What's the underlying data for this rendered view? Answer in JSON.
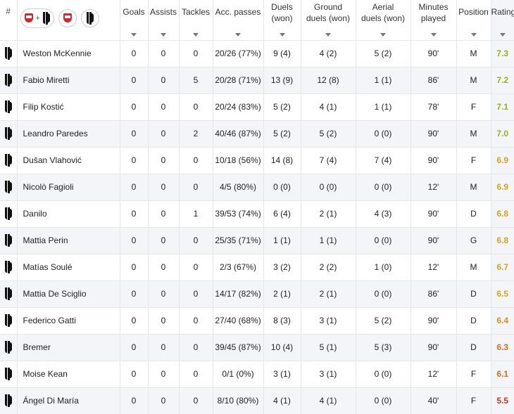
{
  "header": {
    "index_label": "#",
    "columns": [
      {
        "key": "goals",
        "label_lines": [
          "Goals"
        ]
      },
      {
        "key": "assists",
        "label_lines": [
          "Assists"
        ]
      },
      {
        "key": "tackles",
        "label_lines": [
          "Tackles"
        ]
      },
      {
        "key": "acc_passes",
        "label_lines": [
          "Acc. passes"
        ]
      },
      {
        "key": "duels",
        "label_lines": [
          "Duels",
          "(won)"
        ]
      },
      {
        "key": "ground",
        "label_lines": [
          "Ground",
          "duels (won)"
        ]
      },
      {
        "key": "aerial",
        "label_lines": [
          "Aerial",
          "duels (won)"
        ]
      },
      {
        "key": "minutes",
        "label_lines": [
          "Minutes",
          "played"
        ]
      },
      {
        "key": "position",
        "label_lines": [
          "Position"
        ]
      },
      {
        "key": "rating",
        "label_lines": [
          "Rating"
        ]
      }
    ],
    "team_filter": {
      "combined_icons": [
        "monza-crest-icon",
        "juventus-crest-icon"
      ],
      "combined_separator": "+",
      "home_icon": "monza-crest-icon",
      "away_icon": "juventus-crest-icon"
    }
  },
  "colors": {
    "rating_green": "#9aaf1c",
    "rating_yellow": "#d4a41d",
    "rating_orange": "#e48a1a",
    "rating_dark_orange": "#dd6a16",
    "rating_red": "#d1361b",
    "row_shade": "#f4f5f9"
  },
  "players": [
    {
      "name": "Weston McKennie",
      "goals": "0",
      "assists": "0",
      "tackles": "0",
      "acc_passes": "20/26 (77%)",
      "duels": "9 (4)",
      "ground": "4 (2)",
      "aerial": "5 (2)",
      "minutes": "90'",
      "position": "M",
      "rating": "7.3",
      "rating_color": "green"
    },
    {
      "name": "Fabio Miretti",
      "goals": "0",
      "assists": "0",
      "tackles": "5",
      "acc_passes": "20/28 (71%)",
      "duels": "13 (9)",
      "ground": "12 (8)",
      "aerial": "1 (1)",
      "minutes": "86'",
      "position": "M",
      "rating": "7.2",
      "rating_color": "green"
    },
    {
      "name": "Filip Kostić",
      "goals": "0",
      "assists": "0",
      "tackles": "0",
      "acc_passes": "20/24 (83%)",
      "duels": "5 (2)",
      "ground": "4 (1)",
      "aerial": "1 (1)",
      "minutes": "78'",
      "position": "F",
      "rating": "7.1",
      "rating_color": "green"
    },
    {
      "name": "Leandro Paredes",
      "goals": "0",
      "assists": "0",
      "tackles": "2",
      "acc_passes": "40/46 (87%)",
      "duels": "5 (2)",
      "ground": "5 (2)",
      "aerial": "0 (0)",
      "minutes": "90'",
      "position": "M",
      "rating": "7.0",
      "rating_color": "green"
    },
    {
      "name": "Dušan Vlahović",
      "goals": "0",
      "assists": "0",
      "tackles": "0",
      "acc_passes": "10/18 (56%)",
      "duels": "14 (8)",
      "ground": "7 (4)",
      "aerial": "7 (4)",
      "minutes": "90'",
      "position": "F",
      "rating": "6.9",
      "rating_color": "yellow"
    },
    {
      "name": "Nicolò Fagioli",
      "goals": "0",
      "assists": "0",
      "tackles": "0",
      "acc_passes": "4/5 (80%)",
      "duels": "0 (0)",
      "ground": "0 (0)",
      "aerial": "0 (0)",
      "minutes": "12'",
      "position": "M",
      "rating": "6.9",
      "rating_color": "yellow"
    },
    {
      "name": "Danilo",
      "goals": "0",
      "assists": "0",
      "tackles": "1",
      "acc_passes": "39/53 (74%)",
      "duels": "6 (4)",
      "ground": "2 (1)",
      "aerial": "4 (3)",
      "minutes": "90'",
      "position": "D",
      "rating": "6.8",
      "rating_color": "yellow"
    },
    {
      "name": "Mattia Perin",
      "goals": "0",
      "assists": "0",
      "tackles": "0",
      "acc_passes": "25/35 (71%)",
      "duels": "1 (1)",
      "ground": "1 (1)",
      "aerial": "0 (0)",
      "minutes": "90'",
      "position": "G",
      "rating": "6.8",
      "rating_color": "yellow"
    },
    {
      "name": "Matías Soulé",
      "goals": "0",
      "assists": "0",
      "tackles": "0",
      "acc_passes": "2/3 (67%)",
      "duels": "3 (2)",
      "ground": "2 (2)",
      "aerial": "1 (0)",
      "minutes": "12'",
      "position": "M",
      "rating": "6.7",
      "rating_color": "yellow"
    },
    {
      "name": "Mattia De Sciglio",
      "goals": "0",
      "assists": "0",
      "tackles": "0",
      "acc_passes": "14/17 (82%)",
      "duels": "2 (1)",
      "ground": "2 (1)",
      "aerial": "0 (0)",
      "minutes": "86'",
      "position": "D",
      "rating": "6.5",
      "rating_color": "yellow"
    },
    {
      "name": "Federico Gatti",
      "goals": "0",
      "assists": "0",
      "tackles": "0",
      "acc_passes": "27/40 (68%)",
      "duels": "8 (3)",
      "ground": "3 (1)",
      "aerial": "5 (2)",
      "minutes": "90'",
      "position": "D",
      "rating": "6.4",
      "rating_color": "orange"
    },
    {
      "name": "Bremer",
      "goals": "0",
      "assists": "0",
      "tackles": "0",
      "acc_passes": "39/45 (87%)",
      "duels": "10 (4)",
      "ground": "5 (1)",
      "aerial": "5 (3)",
      "minutes": "90'",
      "position": "D",
      "rating": "6.3",
      "rating_color": "dark_orange"
    },
    {
      "name": "Moise Kean",
      "goals": "0",
      "assists": "0",
      "tackles": "0",
      "acc_passes": "0/1 (0%)",
      "duels": "3 (1)",
      "ground": "3 (1)",
      "aerial": "0 (0)",
      "minutes": "12'",
      "position": "F",
      "rating": "6.1",
      "rating_color": "dark_orange"
    },
    {
      "name": "Ángel Di María",
      "goals": "0",
      "assists": "0",
      "tackles": "0",
      "acc_passes": "8/10 (80%)",
      "duels": "4 (1)",
      "ground": "4 (1)",
      "aerial": "0 (0)",
      "minutes": "40'",
      "position": "F",
      "rating": "5.5",
      "rating_color": "red"
    }
  ]
}
